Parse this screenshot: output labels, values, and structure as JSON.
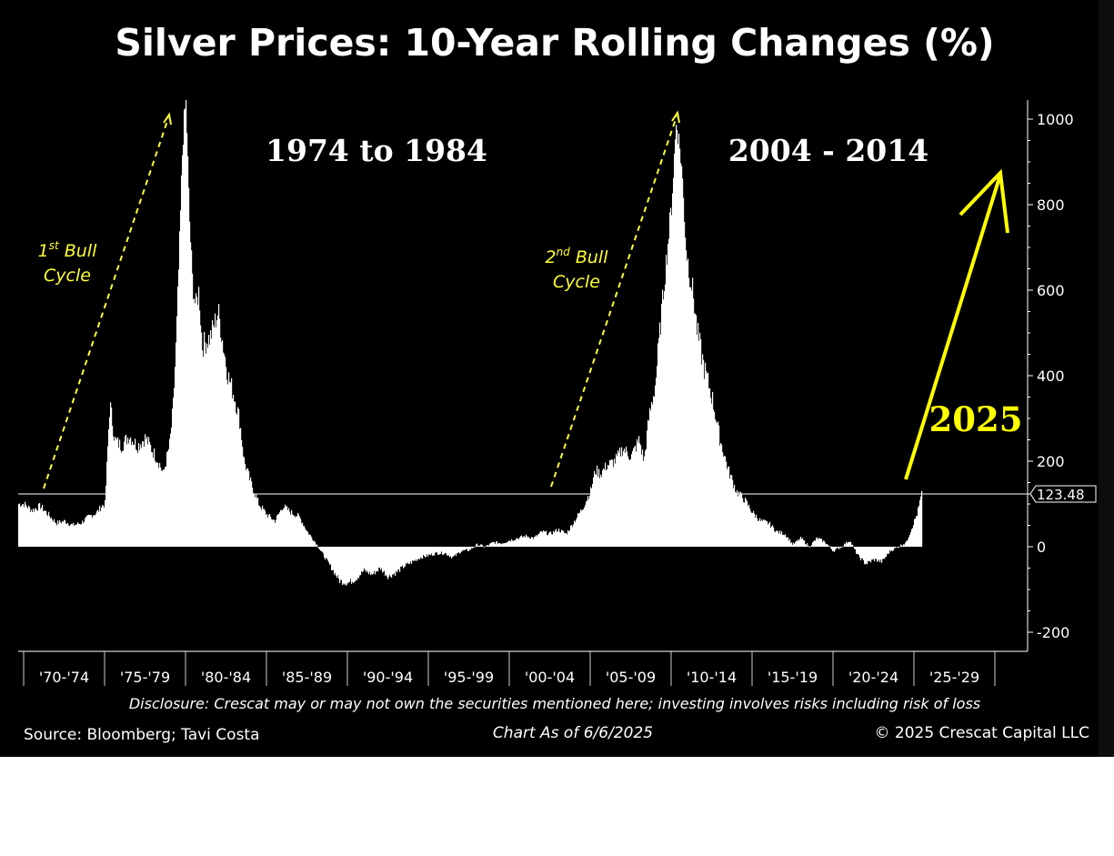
{
  "chart_data": {
    "type": "area",
    "title": "Silver Prices: 10-Year Rolling Changes (%)",
    "xlabel": "",
    "ylabel": "",
    "x_tick_labels": [
      "'70-'74",
      "'75-'79",
      "'80-'84",
      "'85-'89",
      "'90-'94",
      "'95-'99",
      "'00-'04",
      "'05-'09",
      "'10-'14",
      "'15-'19",
      "'20-'24",
      "'25-'29"
    ],
    "y_tick_labels": [
      "1000",
      "800",
      "600",
      "400",
      "200",
      "0",
      "-200"
    ],
    "ylim": [
      -240,
      1050
    ],
    "xlim": [
      1970,
      2030
    ],
    "grid": false,
    "series": [
      {
        "values_note": "",
        "x": [
          1970.0,
          1970.5,
          1971.0,
          1971.5,
          1972.0,
          1972.5,
          1973.0,
          1973.5,
          1974.0,
          1974.5,
          1974.8,
          1975.0,
          1975.3,
          1975.6,
          1976.0,
          1976.5,
          1977.0,
          1977.5,
          1978.0,
          1978.3,
          1978.6,
          1979.0,
          1979.2,
          1979.4,
          1979.6,
          1979.8,
          1980.0,
          1980.2,
          1980.4,
          1980.6,
          1980.8,
          1981.0,
          1981.5,
          1982.0,
          1982.3,
          1982.6,
          1983.0,
          1983.3,
          1983.6,
          1984.0,
          1984.5,
          1985.0,
          1985.5,
          1986.0,
          1986.5,
          1987.0,
          1987.5,
          1988.0,
          1988.5,
          1989.0,
          1989.5,
          1990.0,
          1990.5,
          1991.0,
          1991.5,
          1992.0,
          1992.5,
          1993.0,
          1993.5,
          1994.0,
          1994.5,
          1995.0,
          1995.5,
          1996.0,
          1996.5,
          1997.0,
          1997.5,
          1998.0,
          1998.5,
          1999.0,
          1999.5,
          2000.0,
          2000.5,
          2001.0,
          2001.5,
          2002.0,
          2002.5,
          2003.0,
          2003.5,
          2004.0,
          2004.5,
          2005.0,
          2005.3,
          2005.6,
          2006.0,
          2006.5,
          2007.0,
          2007.5,
          2008.0,
          2008.3,
          2008.6,
          2009.0,
          2009.5,
          2010.0,
          2010.3,
          2010.6,
          2010.9,
          2011.1,
          2011.3,
          2011.6,
          2012.0,
          2012.5,
          2013.0,
          2013.5,
          2014.0,
          2014.5,
          2015.0,
          2015.5,
          2016.0,
          2016.5,
          2017.0,
          2017.5,
          2018.0,
          2018.5,
          2019.0,
          2019.5,
          2020.0,
          2020.5,
          2021.0,
          2021.5,
          2022.0,
          2022.5,
          2023.0,
          2023.5,
          2024.0,
          2024.5,
          2024.9,
          2025.2,
          2025.45
        ],
        "values": [
          100,
          85,
          95,
          75,
          55,
          60,
          50,
          55,
          70,
          80,
          95,
          100,
          335,
          250,
          235,
          260,
          235,
          255,
          220,
          200,
          170,
          240,
          320,
          480,
          700,
          950,
          1050,
          780,
          620,
          560,
          600,
          470,
          490,
          550,
          470,
          400,
          350,
          300,
          200,
          150,
          100,
          75,
          60,
          95,
          80,
          70,
          35,
          10,
          -20,
          -50,
          -80,
          -85,
          -75,
          -55,
          -65,
          -50,
          -70,
          -60,
          -45,
          -35,
          -25,
          -20,
          -15,
          -15,
          -25,
          -10,
          -8,
          5,
          0,
          10,
          8,
          15,
          20,
          25,
          20,
          35,
          30,
          40,
          30,
          60,
          90,
          130,
          180,
          170,
          190,
          200,
          230,
          210,
          250,
          200,
          300,
          380,
          600,
          800,
          1000,
          900,
          700,
          640,
          600,
          500,
          420,
          350,
          250,
          180,
          130,
          110,
          80,
          60,
          55,
          35,
          30,
          5,
          20,
          0,
          20,
          10,
          -10,
          0,
          15,
          -20,
          -40,
          -30,
          -35,
          -10,
          0,
          10,
          50,
          80,
          123.48
        ],
        "last_value_label": "123.48",
        "color": "#ffffff"
      }
    ],
    "reference_line": {
      "value": 123.48,
      "color": "#ffffff"
    },
    "annotations": {
      "bull1": {
        "line1_base": "1",
        "line1_sup": "st",
        "line1_rest": " Bull",
        "line2": "Cycle",
        "color": "#ffff33"
      },
      "bull2": {
        "line1_base": "2",
        "line1_sup": "nd",
        "line1_rest": " Bull",
        "line2": "Cycle",
        "color": "#ffff33"
      },
      "period1": "1974 to 1984",
      "period2": "2004 - 2014",
      "forecast_label": "2025",
      "forecast_color": "#ffff00"
    },
    "footer": {
      "disclosure": "Disclosure: Crescat may or may not own the securities mentioned here; investing involves risks including risk of loss",
      "source": "Source: Bloomberg; Tavi Costa",
      "as_of": "Chart As of 6/6/2025",
      "copyright": "© 2025 Crescat Capital LLC"
    }
  }
}
